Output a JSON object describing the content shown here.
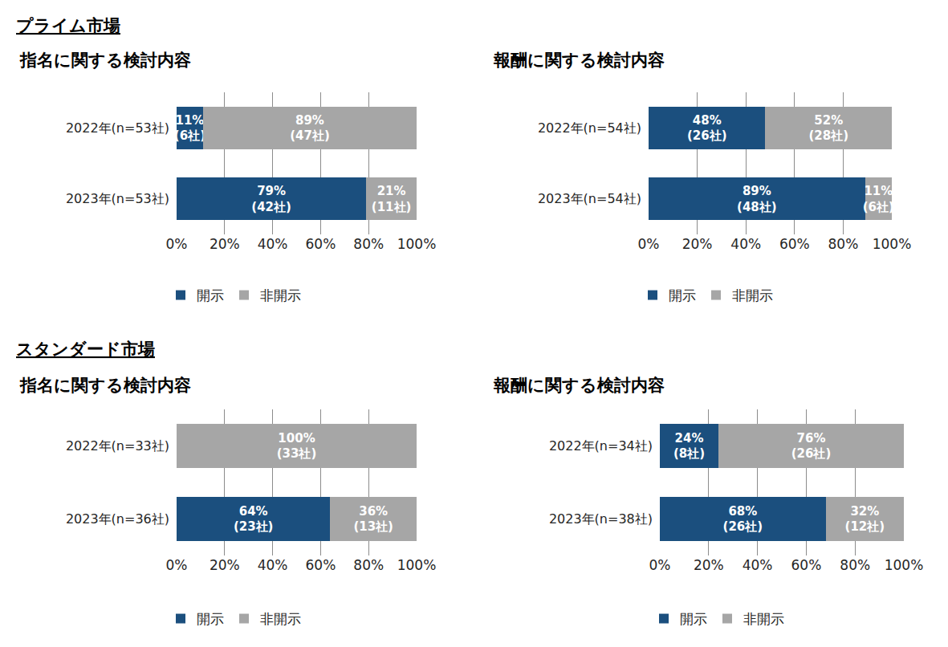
{
  "chart_data": [
    {
      "type": "bar",
      "annotations": [
        "プライム市場"
      ],
      "title": "指名に関する検討内容",
      "orientation": "horizontal",
      "stacked": true,
      "data_labels": true,
      "grid": true,
      "legend": "bottom",
      "categories": [
        "2022年(n=53社)",
        "2023年(n=53社)"
      ],
      "series": [
        {
          "name": "開示",
          "color": "#1b4f7e",
          "values": [
            11,
            79
          ],
          "value_labels": [
            "11%\n(6社)",
            "79%\n(42社)"
          ]
        },
        {
          "name": "非開示",
          "color": "#a6a6a6",
          "values": [
            89,
            21
          ],
          "value_labels": [
            "89%\n(47社)",
            "21%\n(11社)"
          ]
        }
      ],
      "xlim": [
        0,
        100
      ],
      "xticks": [
        {
          "value": 0,
          "label": "0%"
        },
        {
          "value": 20,
          "label": "20%"
        },
        {
          "value": 40,
          "label": "40%"
        },
        {
          "value": 60,
          "label": "60%"
        },
        {
          "value": 80,
          "label": "80%"
        },
        {
          "value": 100,
          "label": "100%"
        }
      ]
    },
    {
      "type": "bar",
      "title": "報酬に関する検討内容",
      "orientation": "horizontal",
      "stacked": true,
      "data_labels": true,
      "grid": true,
      "legend": "bottom",
      "categories": [
        "2022年(n=54社)",
        "2023年(n=54社)"
      ],
      "series": [
        {
          "name": "開示",
          "color": "#1b4f7e",
          "values": [
            48,
            89
          ],
          "value_labels": [
            "48%\n(26社)",
            "89%\n(48社)"
          ]
        },
        {
          "name": "非開示",
          "color": "#a6a6a6",
          "values": [
            52,
            11
          ],
          "value_labels": [
            "52%\n(28社)",
            "11%\n(6社)"
          ]
        }
      ],
      "xlim": [
        0,
        100
      ],
      "xticks": [
        {
          "value": 0,
          "label": "0%"
        },
        {
          "value": 20,
          "label": "20%"
        },
        {
          "value": 40,
          "label": "40%"
        },
        {
          "value": 60,
          "label": "60%"
        },
        {
          "value": 80,
          "label": "80%"
        },
        {
          "value": 100,
          "label": "100%"
        }
      ]
    },
    {
      "type": "bar",
      "annotations": [
        "スタンダード市場"
      ],
      "title": "指名に関する検討内容",
      "orientation": "horizontal",
      "stacked": true,
      "data_labels": true,
      "grid": true,
      "legend": "bottom",
      "categories": [
        "2022年(n=33社)",
        "2023年(n=36社)"
      ],
      "series": [
        {
          "name": "開示",
          "color": "#1b4f7e",
          "values": [
            0,
            64
          ],
          "value_labels": [
            null,
            "64%\n(23社)"
          ]
        },
        {
          "name": "非開示",
          "color": "#a6a6a6",
          "values": [
            100,
            36
          ],
          "value_labels": [
            "100%\n(33社)",
            "36%\n(13社)"
          ]
        }
      ],
      "xlim": [
        0,
        100
      ],
      "xticks": [
        {
          "value": 0,
          "label": "0%"
        },
        {
          "value": 20,
          "label": "20%"
        },
        {
          "value": 40,
          "label": "40%"
        },
        {
          "value": 60,
          "label": "60%"
        },
        {
          "value": 80,
          "label": "80%"
        },
        {
          "value": 100,
          "label": "100%"
        }
      ]
    },
    {
      "type": "bar",
      "title": "報酬に関する検討内容",
      "orientation": "horizontal",
      "stacked": true,
      "data_labels": true,
      "grid": true,
      "legend": "bottom",
      "categories": [
        "2022年(n=34社)",
        "2023年(n=38社)"
      ],
      "series": [
        {
          "name": "開示",
          "color": "#1b4f7e",
          "values": [
            24,
            68
          ],
          "value_labels": [
            "24%\n(8社)",
            "68%\n(26社)"
          ]
        },
        {
          "name": "非開示",
          "color": "#a6a6a6",
          "values": [
            76,
            32
          ],
          "value_labels": [
            "76%\n(26社)",
            "32%\n(12社)"
          ]
        }
      ],
      "xlim": [
        0,
        100
      ],
      "xticks": [
        {
          "value": 0,
          "label": "0%"
        },
        {
          "value": 20,
          "label": "20%"
        },
        {
          "value": 40,
          "label": "40%"
        },
        {
          "value": 60,
          "label": "60%"
        },
        {
          "value": 80,
          "label": "80%"
        },
        {
          "value": 100,
          "label": "100%"
        }
      ]
    }
  ]
}
